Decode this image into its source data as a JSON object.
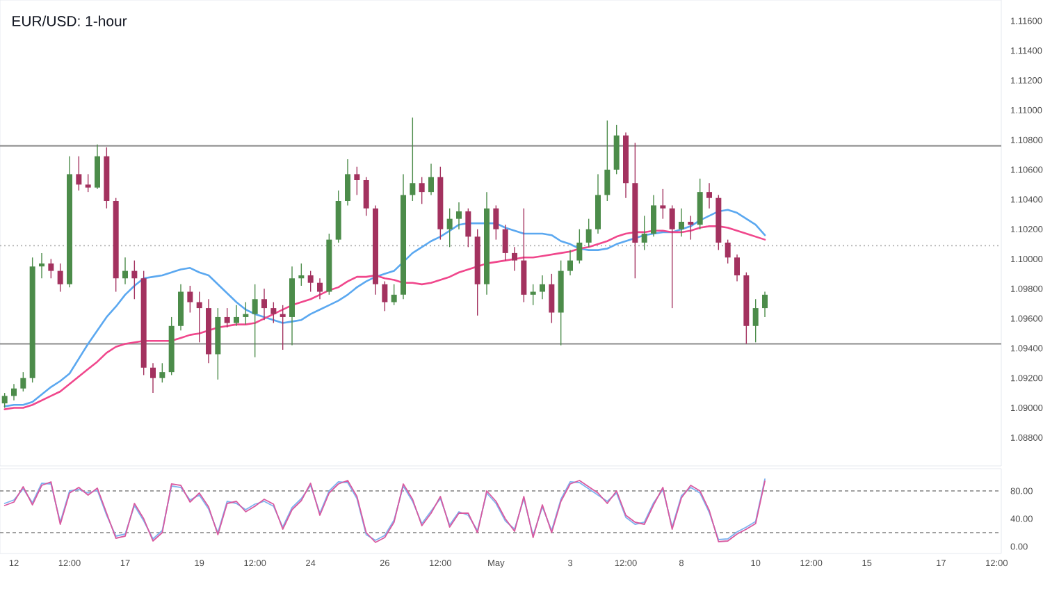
{
  "chart_data": [
    {
      "type": "candlestick",
      "title": "EUR/USD: 1-hour",
      "categories": [
        null,
        null,
        null,
        null,
        null,
        null,
        null,
        null,
        null,
        null,
        null,
        null,
        null,
        null,
        null,
        null,
        null,
        null,
        null,
        null,
        null,
        null,
        null,
        null,
        null,
        null,
        null,
        null,
        null,
        null,
        null,
        null,
        null,
        null,
        null,
        null,
        null,
        null,
        null,
        null,
        null,
        null,
        null,
        null,
        null,
        null,
        null,
        null,
        null,
        null,
        null,
        null,
        null,
        null,
        null,
        null,
        null,
        null,
        null,
        null,
        null,
        null,
        null,
        null,
        null,
        null,
        null,
        null,
        null,
        null,
        null,
        null,
        null,
        null,
        null,
        null,
        null,
        null,
        null,
        null,
        null,
        null,
        null,
        null,
        null,
        null,
        null,
        null,
        null,
        null,
        null,
        null,
        null,
        null,
        null,
        null,
        null,
        null,
        null,
        null,
        null,
        null,
        null,
        null,
        null,
        null,
        null,
        null
      ],
      "ohlc": [
        [
          1.0903,
          1.091,
          1.09,
          1.0908
        ],
        [
          1.0908,
          1.0916,
          1.0905,
          1.0913
        ],
        [
          1.0913,
          1.0924,
          1.0911,
          1.092
        ],
        [
          1.092,
          1.1001,
          1.0917,
          1.0995
        ],
        [
          1.0995,
          1.1004,
          1.0987,
          1.0997
        ],
        [
          1.0997,
          1.1,
          1.0987,
          1.0992
        ],
        [
          1.0992,
          1.0997,
          1.0978,
          1.0983
        ],
        [
          1.0983,
          1.1069,
          1.0981,
          1.1057
        ],
        [
          1.1057,
          1.1069,
          1.1046,
          1.105
        ],
        [
          1.105,
          1.1057,
          1.1045,
          1.1048
        ],
        [
          1.1048,
          1.1077,
          1.1047,
          1.1069
        ],
        [
          1.1069,
          1.1075,
          1.1034,
          1.1039
        ],
        [
          1.1039,
          1.1041,
          1.0978,
          1.0987
        ],
        [
          1.0987,
          1.1001,
          1.0983,
          1.0992
        ],
        [
          1.0992,
          1.0999,
          1.0973,
          1.0987
        ],
        [
          1.0987,
          1.0992,
          1.0922,
          1.0927
        ],
        [
          1.0927,
          1.093,
          1.091,
          1.092
        ],
        [
          1.092,
          1.093,
          1.0917,
          1.0924
        ],
        [
          1.0924,
          1.0961,
          1.0922,
          1.0955
        ],
        [
          1.0955,
          1.0983,
          1.0952,
          1.0978
        ],
        [
          1.0978,
          1.0982,
          1.0964,
          1.0971
        ],
        [
          1.0971,
          1.0978,
          1.0944,
          1.0967
        ],
        [
          1.0967,
          1.0973,
          1.093,
          1.0936
        ],
        [
          1.0936,
          1.0967,
          1.0919,
          1.0961
        ],
        [
          1.0961,
          1.0967,
          1.0954,
          1.0957
        ],
        [
          1.0957,
          1.0969,
          1.0955,
          1.0961
        ],
        [
          1.0961,
          1.0971,
          1.0956,
          1.0963
        ],
        [
          1.0963,
          1.0983,
          1.0934,
          1.0973
        ],
        [
          1.0973,
          1.098,
          1.0959,
          1.0967
        ],
        [
          1.0967,
          1.0971,
          1.0957,
          1.0963
        ],
        [
          1.0963,
          1.0969,
          1.0939,
          1.0961
        ],
        [
          1.0961,
          1.0995,
          1.0942,
          1.0987
        ],
        [
          1.0987,
          1.0997,
          1.0982,
          1.0989
        ],
        [
          1.0989,
          1.0992,
          1.0978,
          1.0984
        ],
        [
          1.0984,
          1.0987,
          1.0973,
          1.0978
        ],
        [
          1.0978,
          1.1017,
          1.0976,
          1.1013
        ],
        [
          1.1013,
          1.1046,
          1.1011,
          1.1039
        ],
        [
          1.1039,
          1.1067,
          1.1036,
          1.1057
        ],
        [
          1.1057,
          1.1062,
          1.1043,
          1.1053
        ],
        [
          1.1053,
          1.1055,
          1.1029,
          1.1034
        ],
        [
          1.1034,
          1.1036,
          1.0976,
          1.0983
        ],
        [
          1.0983,
          1.0985,
          1.0965,
          1.0971
        ],
        [
          1.0971,
          1.0983,
          1.0969,
          1.0976
        ],
        [
          1.0976,
          1.1057,
          1.0973,
          1.1043
        ],
        [
          1.1043,
          1.1095,
          1.1039,
          1.1051
        ],
        [
          1.1051,
          1.1055,
          1.1037,
          1.1045
        ],
        [
          1.1045,
          1.1064,
          1.1043,
          1.1055
        ],
        [
          1.1055,
          1.1062,
          1.1013,
          1.102
        ],
        [
          1.102,
          1.1034,
          1.1008,
          1.1027
        ],
        [
          1.1027,
          1.1038,
          1.102,
          1.1032
        ],
        [
          1.1032,
          1.1034,
          1.1008,
          1.1015
        ],
        [
          1.1015,
          1.102,
          1.0962,
          1.0983
        ],
        [
          1.0983,
          1.1045,
          1.0976,
          1.1034
        ],
        [
          1.1034,
          1.1036,
          1.1013,
          1.102
        ],
        [
          1.102,
          1.1023,
          1.0999,
          1.1004
        ],
        [
          1.1004,
          1.1008,
          1.0992,
          1.0999
        ],
        [
          1.0999,
          1.1034,
          1.0971,
          1.0976
        ],
        [
          1.0976,
          1.0983,
          1.0969,
          1.0978
        ],
        [
          1.0978,
          1.0989,
          1.0973,
          1.0983
        ],
        [
          1.0983,
          1.099,
          1.0957,
          1.0964
        ],
        [
          1.0964,
          1.0999,
          1.0942,
          1.0992
        ],
        [
          1.0992,
          1.1006,
          1.0989,
          1.0999
        ],
        [
          1.0999,
          1.102,
          1.0997,
          1.1011
        ],
        [
          1.1011,
          1.1027,
          1.1008,
          1.102
        ],
        [
          1.102,
          1.1057,
          1.1017,
          1.1043
        ],
        [
          1.1043,
          1.1093,
          1.1039,
          1.106
        ],
        [
          1.106,
          1.109,
          1.1057,
          1.1083
        ],
        [
          1.1083,
          1.1085,
          1.1041,
          1.1051
        ],
        [
          1.1051,
          1.1078,
          1.0987,
          1.1011
        ],
        [
          1.1011,
          1.1029,
          1.1006,
          1.1017
        ],
        [
          1.1017,
          1.1043,
          1.1015,
          1.1036
        ],
        [
          1.1036,
          1.1047,
          1.1027,
          1.1034
        ],
        [
          1.1034,
          1.1036,
          1.0967,
          1.102
        ],
        [
          1.102,
          1.1034,
          1.1015,
          1.1025
        ],
        [
          1.1025,
          1.1029,
          1.1013,
          1.1023
        ],
        [
          1.1023,
          1.1054,
          1.102,
          1.1045
        ],
        [
          1.1045,
          1.1051,
          1.1034,
          1.1041
        ],
        [
          1.1041,
          1.1043,
          1.1006,
          1.1011
        ],
        [
          1.1011,
          1.1013,
          1.0997,
          1.1001
        ],
        [
          1.1001,
          1.1003,
          1.0985,
          1.0989
        ],
        [
          1.0989,
          1.0991,
          1.0943,
          1.0955
        ],
        [
          1.0955,
          1.0973,
          1.0944,
          1.0967
        ],
        [
          1.0967,
          1.0978,
          1.0961,
          1.0976
        ],
        null,
        null,
        null,
        null,
        null,
        null,
        null,
        null,
        null,
        null,
        null,
        null,
        null,
        null,
        null,
        null,
        null,
        null,
        null,
        null,
        null,
        null,
        null,
        null,
        null
      ],
      "colors": [
        "#4c8c4a",
        "#4c8c4a",
        "#4c8c4a",
        "#4c8c4a",
        "#4c8c4a",
        "#a3325f",
        "#a3325f",
        "#4c8c4a",
        "#a3325f",
        "#a3325f",
        "#4c8c4a",
        "#a3325f",
        "#a3325f",
        "#4c8c4a",
        "#a3325f",
        "#a3325f",
        "#a3325f",
        "#4c8c4a",
        "#4c8c4a",
        "#4c8c4a",
        "#a3325f",
        "#a3325f",
        "#a3325f",
        "#4c8c4a",
        "#a3325f",
        "#4c8c4a",
        "#4c8c4a",
        "#4c8c4a",
        "#a3325f",
        "#a3325f",
        "#a3325f",
        "#4c8c4a",
        "#4c8c4a",
        "#a3325f",
        "#a3325f",
        "#4c8c4a",
        "#4c8c4a",
        "#4c8c4a",
        "#a3325f",
        "#a3325f",
        "#a3325f",
        "#a3325f",
        "#4c8c4a",
        "#4c8c4a",
        "#4c8c4a",
        "#a3325f",
        "#4c8c4a",
        "#a3325f",
        "#4c8c4a",
        "#4c8c4a",
        "#a3325f",
        "#a3325f",
        "#4c8c4a",
        "#a3325f",
        "#a3325f",
        "#a3325f",
        "#a3325f",
        "#4c8c4a",
        "#4c8c4a",
        "#a3325f",
        "#4c8c4a",
        "#4c8c4a",
        "#4c8c4a",
        "#4c8c4a",
        "#4c8c4a",
        "#4c8c4a",
        "#4c8c4a",
        "#a3325f",
        "#a3325f",
        "#4c8c4a",
        "#4c8c4a",
        "#a3325f",
        "#a3325f",
        "#4c8c4a",
        "#a3325f",
        "#4c8c4a",
        "#a3325f",
        "#a3325f",
        "#a3325f",
        "#a3325f",
        "#a3325f",
        "#4c8c4a",
        "#4c8c4a",
        null,
        null,
        null,
        null,
        null,
        null,
        null,
        null,
        null,
        null,
        null,
        null,
        null,
        null,
        null,
        null,
        null,
        null,
        null,
        null,
        null,
        null,
        null,
        null,
        null
      ],
      "series": [
        {
          "type": "line",
          "color": "#5ba8f0",
          "values": [
            1.0901,
            1.0902,
            1.0902,
            1.0904,
            1.0909,
            1.0914,
            1.0918,
            1.0923,
            1.0933,
            1.0943,
            1.0952,
            1.0961,
            1.0968,
            1.0976,
            1.0982,
            1.0987,
            1.0988,
            1.0989,
            1.0991,
            1.0993,
            1.0994,
            1.0991,
            1.0989,
            1.0983,
            1.0977,
            1.0971,
            1.0966,
            1.0963,
            1.0961,
            1.0959,
            1.0957,
            1.0958,
            1.0959,
            1.0963,
            1.0966,
            1.0969,
            1.0972,
            1.0976,
            1.0981,
            1.0985,
            1.0988,
            1.099,
            1.0992,
            1.0998,
            1.1004,
            1.1008,
            1.1012,
            1.1015,
            1.1019,
            1.1023,
            1.1024,
            1.1024,
            1.1024,
            1.1024,
            1.1021,
            1.1019,
            1.1017,
            1.1017,
            1.1017,
            1.1016,
            1.1012,
            1.101,
            1.1007,
            1.1006,
            1.1006,
            1.1007,
            1.101,
            1.1012,
            1.1014,
            1.1016,
            1.1017,
            1.1018,
            1.1018,
            1.102,
            1.1022,
            1.1026,
            1.1029,
            1.1032,
            1.1033,
            1.1031,
            1.1027,
            1.1023,
            1.1016,
            null,
            null,
            null,
            null,
            null,
            null,
            null,
            null,
            null,
            null,
            null,
            null,
            null,
            null,
            null,
            null,
            null,
            null,
            null,
            null,
            null,
            null,
            null,
            null,
            null
          ]
        },
        {
          "type": "line",
          "color": "#f0478c",
          "values": [
            1.0899,
            1.09,
            1.09,
            1.0902,
            1.0905,
            1.0908,
            1.0911,
            1.0916,
            1.0921,
            1.0926,
            1.0931,
            1.0937,
            1.0941,
            1.0943,
            1.0944,
            1.0945,
            1.0945,
            1.0945,
            1.0945,
            1.0947,
            1.0949,
            1.095,
            1.0952,
            1.0954,
            1.0955,
            1.0956,
            1.0956,
            1.0957,
            1.096,
            1.0963,
            1.0966,
            1.0969,
            1.0971,
            1.0973,
            1.0976,
            1.0979,
            1.0981,
            1.0985,
            1.0988,
            1.0988,
            1.0989,
            1.0987,
            1.0986,
            1.0984,
            1.0984,
            1.0983,
            1.0984,
            1.0986,
            1.0988,
            1.0991,
            1.0993,
            1.0995,
            1.0997,
            1.0998,
            1.0999,
            1.1,
            1.1001,
            1.1001,
            1.1002,
            1.1003,
            1.1004,
            1.1005,
            1.1007,
            1.1008,
            1.101,
            1.1012,
            1.1015,
            1.1017,
            1.1018,
            1.1018,
            1.1019,
            1.1019,
            1.1018,
            1.1018,
            1.1019,
            1.1021,
            1.1022,
            1.1022,
            1.1021,
            1.1019,
            1.1017,
            1.1015,
            1.1013,
            null,
            null,
            null,
            null,
            null,
            null,
            null,
            null,
            null,
            null,
            null,
            null,
            null,
            null,
            null,
            null,
            null,
            null,
            null,
            null,
            null,
            null,
            null,
            null,
            null
          ]
        }
      ],
      "ylim": [
        1.0861,
        1.1174
      ],
      "yticks": [
        {
          "value": 1.116,
          "label": "1.11600"
        },
        {
          "value": 1.114,
          "label": "1.11400"
        },
        {
          "value": 1.112,
          "label": "1.11200"
        },
        {
          "value": 1.11,
          "label": "1.11000"
        },
        {
          "value": 1.108,
          "label": "1.10800"
        },
        {
          "value": 1.106,
          "label": "1.10600"
        },
        {
          "value": 1.104,
          "label": "1.10400"
        },
        {
          "value": 1.102,
          "label": "1.10200"
        },
        {
          "value": 1.1,
          "label": "1.10000"
        },
        {
          "value": 1.098,
          "label": "1.09800"
        },
        {
          "value": 1.096,
          "label": "1.09600"
        },
        {
          "value": 1.094,
          "label": "1.09400"
        },
        {
          "value": 1.092,
          "label": "1.09200"
        },
        {
          "value": 1.09,
          "label": "1.09000"
        },
        {
          "value": 1.088,
          "label": "1.08800"
        }
      ],
      "ref_lines": [
        {
          "axis": "y",
          "value": 1.1076,
          "color": "#8c8c8c"
        },
        {
          "axis": "y",
          "value": 1.0943,
          "color": "#8c8c8c"
        },
        {
          "axis": "y",
          "value": 1.1009,
          "color": "#b8b8b8",
          "line_style": "dotted"
        }
      ],
      "tick_labels": "y"
    },
    {
      "type": "line",
      "categories": [
        null,
        "12",
        null,
        null,
        null,
        null,
        null,
        "12:00",
        null,
        null,
        null,
        null,
        null,
        "17",
        null,
        null,
        null,
        null,
        null,
        null,
        null,
        "19",
        null,
        null,
        null,
        null,
        null,
        "12:00",
        null,
        null,
        null,
        null,
        null,
        "24",
        null,
        null,
        null,
        null,
        null,
        null,
        null,
        "26",
        null,
        null,
        null,
        null,
        null,
        "12:00",
        null,
        null,
        null,
        null,
        null,
        "May",
        null,
        null,
        null,
        null,
        null,
        null,
        null,
        "3",
        null,
        null,
        null,
        null,
        null,
        "12:00",
        null,
        null,
        null,
        null,
        null,
        "8",
        null,
        null,
        null,
        null,
        null,
        null,
        null,
        "10",
        null,
        null,
        null,
        null,
        null,
        "12:00",
        null,
        null,
        null,
        null,
        null,
        "15",
        null,
        null,
        null,
        null,
        null,
        null,
        null,
        "17",
        null,
        null,
        null,
        null,
        null,
        "12:00"
      ],
      "series": [
        {
          "type": "line",
          "color": "#7fb3ef",
          "values": [
            62,
            67,
            83,
            63,
            91,
            90,
            35,
            80,
            82,
            77,
            81,
            45,
            15,
            18,
            59,
            37,
            11,
            23,
            87,
            85,
            67,
            74,
            54,
            20,
            65,
            62,
            53,
            61,
            65,
            58,
            28,
            56,
            69,
            88,
            48,
            80,
            93,
            92,
            69,
            17,
            9,
            16,
            38,
            87,
            65,
            33,
            51,
            69,
            31,
            50,
            45,
            23,
            77,
            62,
            37,
            25,
            69,
            16,
            57,
            23,
            68,
            93,
            92,
            83,
            74,
            65,
            77,
            42,
            32,
            35,
            63,
            82,
            28,
            73,
            85,
            77,
            49,
            10,
            11,
            21,
            28,
            36,
            97,
            null,
            null,
            null,
            null,
            null,
            null,
            null,
            null,
            null,
            null,
            null,
            null,
            null,
            null,
            null,
            null,
            null,
            null,
            null,
            null,
            null,
            null,
            null,
            null,
            null
          ]
        },
        {
          "type": "line",
          "color": "#d95aa0",
          "values": [
            59,
            64,
            86,
            60,
            88,
            93,
            32,
            77,
            85,
            74,
            84,
            48,
            12,
            15,
            62,
            40,
            8,
            20,
            90,
            88,
            64,
            77,
            57,
            17,
            62,
            65,
            50,
            58,
            68,
            61,
            25,
            53,
            66,
            91,
            45,
            77,
            90,
            95,
            72,
            20,
            6,
            13,
            35,
            90,
            68,
            30,
            48,
            72,
            28,
            48,
            48,
            20,
            80,
            65,
            40,
            22,
            72,
            13,
            60,
            20,
            65,
            90,
            95,
            86,
            77,
            62,
            80,
            45,
            35,
            32,
            60,
            85,
            25,
            70,
            88,
            80,
            52,
            7,
            8,
            18,
            25,
            33,
            94,
            null,
            null,
            null,
            null,
            null,
            null,
            null,
            null,
            null,
            null,
            null,
            null,
            null,
            null,
            null,
            null,
            null,
            null,
            null,
            null,
            null,
            null,
            null,
            null,
            null
          ]
        }
      ],
      "ylim": [
        -10,
        112
      ],
      "yticks": [
        {
          "value": 80,
          "label": "80.00"
        },
        {
          "value": 40,
          "label": "40.00"
        },
        {
          "value": 0,
          "label": "0.00"
        }
      ],
      "ref_lines": [
        {
          "axis": "y",
          "value": 80,
          "color": "#a0a0a0",
          "line_style": "dashed"
        },
        {
          "axis": "y",
          "value": 20,
          "color": "#a0a0a0",
          "line_style": "dashed"
        }
      ]
    }
  ]
}
